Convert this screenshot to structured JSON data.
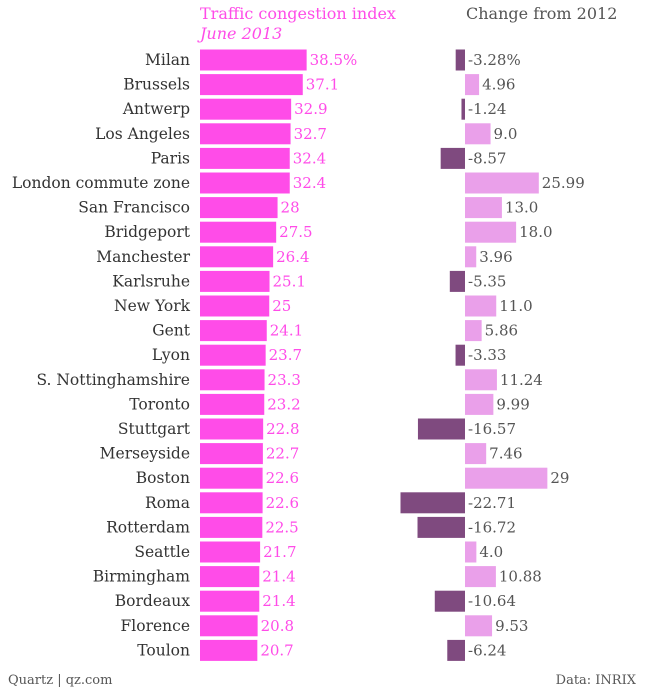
{
  "chart_data": {
    "type": "bar",
    "panels": [
      {
        "title": "Traffic congestion index",
        "subtitle": "June 2013",
        "value_labels": [
          "38.5%",
          "37.1",
          "32.9",
          "32.7",
          "32.4",
          "32.4",
          "28",
          "27.5",
          "26.4",
          "25.1",
          "25",
          "24.1",
          "23.7",
          "23.3",
          "23.2",
          "22.8",
          "22.7",
          "22.6",
          "22.6",
          "22.5",
          "21.7",
          "21.4",
          "21.4",
          "20.8",
          "20.7"
        ],
        "values": [
          38.5,
          37.1,
          32.9,
          32.7,
          32.4,
          32.4,
          28,
          27.5,
          26.4,
          25.1,
          25,
          24.1,
          23.7,
          23.3,
          23.2,
          22.8,
          22.7,
          22.6,
          22.6,
          22.5,
          21.7,
          21.4,
          21.4,
          20.8,
          20.7
        ]
      },
      {
        "title": "Change from 2012",
        "value_labels": [
          "-3.28%",
          "4.96",
          "-1.24",
          "9.0",
          "-8.57",
          "25.99",
          "13.0",
          "18.0",
          "3.96",
          "-5.35",
          "11.0",
          "5.86",
          "-3.33",
          "11.24",
          "9.99",
          "-16.57",
          "7.46",
          "29",
          "-22.71",
          "-16.72",
          "4.0",
          "10.88",
          "-10.64",
          "9.53",
          "-6.24"
        ],
        "values": [
          -3.28,
          4.96,
          -1.24,
          9.0,
          -8.57,
          25.99,
          13.0,
          18.0,
          3.96,
          -5.35,
          11.0,
          5.86,
          -3.33,
          11.24,
          9.99,
          -16.57,
          7.46,
          29,
          -22.71,
          -16.72,
          4.0,
          10.88,
          -10.64,
          9.53,
          -6.24
        ]
      }
    ],
    "categories": [
      "Milan",
      "Brussels",
      "Antwerp",
      "Los Angeles",
      "Paris",
      "London commute zone",
      "San Francisco",
      "Bridgeport",
      "Manchester",
      "Karlsruhe",
      "New York",
      "Gent",
      "Lyon",
      "S. Nottinghamshire",
      "Toronto",
      "Stuttgart",
      "Merseyside",
      "Boston",
      "Roma",
      "Rotterdam",
      "Seattle",
      "Birmingham",
      "Bordeaux",
      "Florence",
      "Toulon"
    ],
    "colors": {
      "index_bar": "#ff4ce8",
      "index_text": "#ff4ce8",
      "positive_bar": "#eaa0ea",
      "negative_bar": "#7f4a7f",
      "change_text": "#555555"
    }
  },
  "footer": {
    "source_left": "Quartz | qz.com",
    "source_right": "Data: INRIX"
  }
}
